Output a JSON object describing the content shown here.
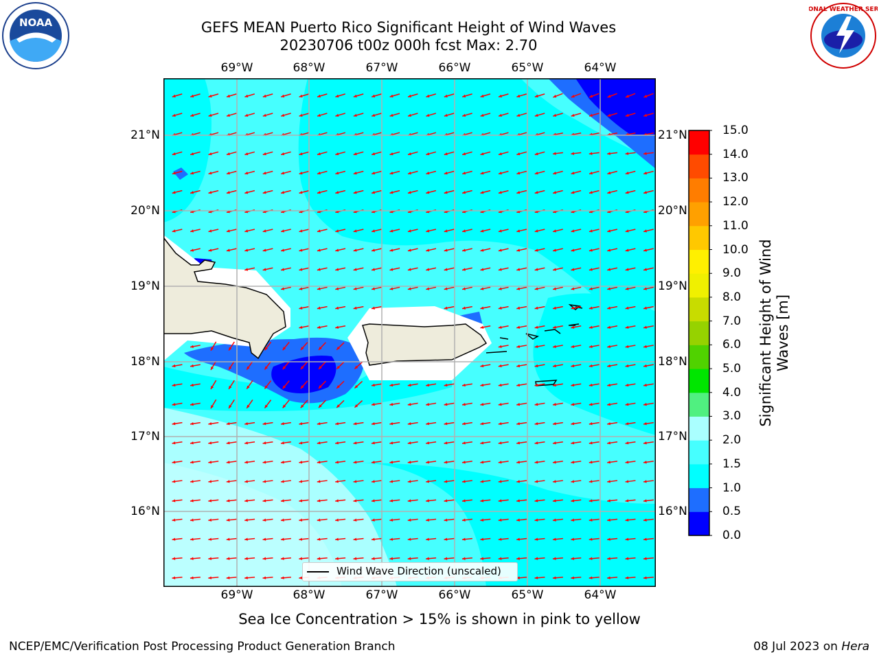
{
  "title": {
    "line1": "GEFS MEAN Puerto Rico Significant Height of Wind Waves",
    "line2": "20230706 t00z 000h fcst   Max: 2.70"
  },
  "map": {
    "lon_labels": [
      "69°W",
      "68°W",
      "67°W",
      "66°W",
      "65°W",
      "64°W"
    ],
    "lat_labels": [
      "21°N",
      "20°N",
      "19°N",
      "18°N",
      "17°N",
      "16°N"
    ],
    "lon_range": [
      -70.0,
      -63.3
    ],
    "lat_range": [
      15.0,
      21.75
    ],
    "legend_label": "Wind Wave Direction (unscaled)",
    "arrow_color": "#ff0000",
    "land_color": "#eeecdc",
    "wind_direction": "from east-northeast (arrows point west-southwest)"
  },
  "colorbar": {
    "title": "Significant Height of Wind Waves [m]",
    "ticks": [
      "0.0",
      "0.5",
      "1.0",
      "1.5",
      "2.0",
      "3.0",
      "4.0",
      "5.0",
      "6.0",
      "7.0",
      "8.0",
      "9.0",
      "10.0",
      "11.0",
      "12.0",
      "13.0",
      "14.0",
      "15.0"
    ],
    "colors": [
      "#0000ff",
      "#1e6eff",
      "#00ffff",
      "#46ffff",
      "#aaffff",
      "#50f080",
      "#00e600",
      "#50d200",
      "#96d200",
      "#c8dc00",
      "#f0f000",
      "#fff000",
      "#ffc800",
      "#ffa000",
      "#ff7d00",
      "#ff4b00",
      "#ff0000"
    ]
  },
  "logos": {
    "left": "NOAA",
    "right": "NATIONAL WEATHER SERVICE"
  },
  "footnote": "Sea Ice Concentration > 15% is shown in pink to yellow",
  "credit_left": "NCEP/EMC/Verification Post Processing Product Generation Branch",
  "credit_right_date": "08 Jul 2023 on ",
  "credit_right_host": "Hera"
}
